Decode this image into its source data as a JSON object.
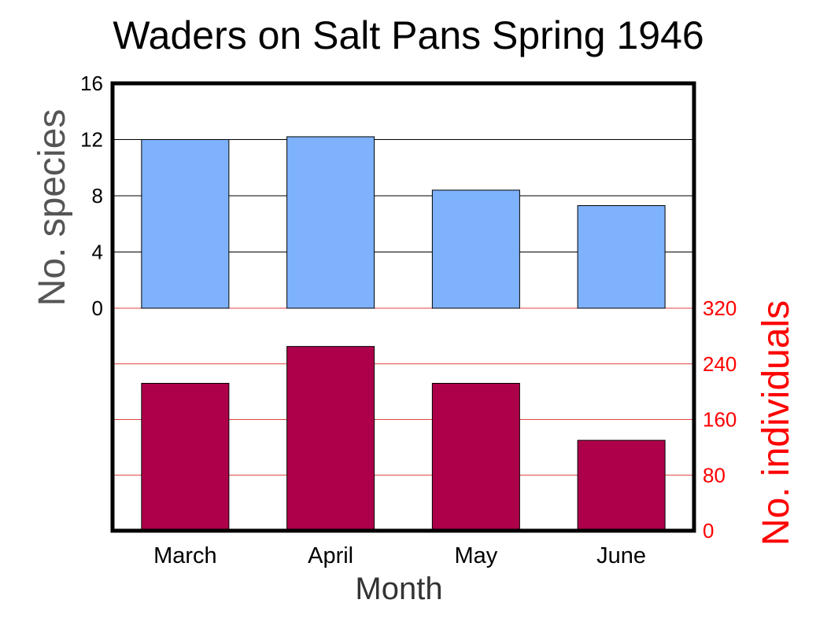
{
  "chart_data": {
    "type": "bar",
    "title": "Waders on Salt Pans Spring 1946",
    "xlabel": "Month",
    "categories": [
      "March",
      "April",
      "May",
      "June"
    ],
    "panels": [
      {
        "position": "top",
        "ylabel": "No. species",
        "axis_side": "left",
        "ylim": [
          0,
          16
        ],
        "yticks": [
          "0",
          "4",
          "8",
          "12",
          "16"
        ],
        "series": [
          {
            "values": [
              12,
              12.2,
              8.4,
              7.3
            ],
            "color": "#7eb2fc"
          }
        ],
        "grid": true
      },
      {
        "position": "bottom",
        "ylabel": "No. individuals",
        "axis_side": "right",
        "ylim": [
          0,
          320
        ],
        "yticks": [
          "0",
          "80",
          "160",
          "240",
          "320"
        ],
        "series": [
          {
            "values": [
              212,
              265,
              212,
              130
            ],
            "color": "#ae004a"
          }
        ],
        "grid": true
      }
    ],
    "colors": {
      "species_axis": "#555555",
      "individuals_axis": "#ff0000",
      "individuals_grid": "#e04040"
    }
  }
}
